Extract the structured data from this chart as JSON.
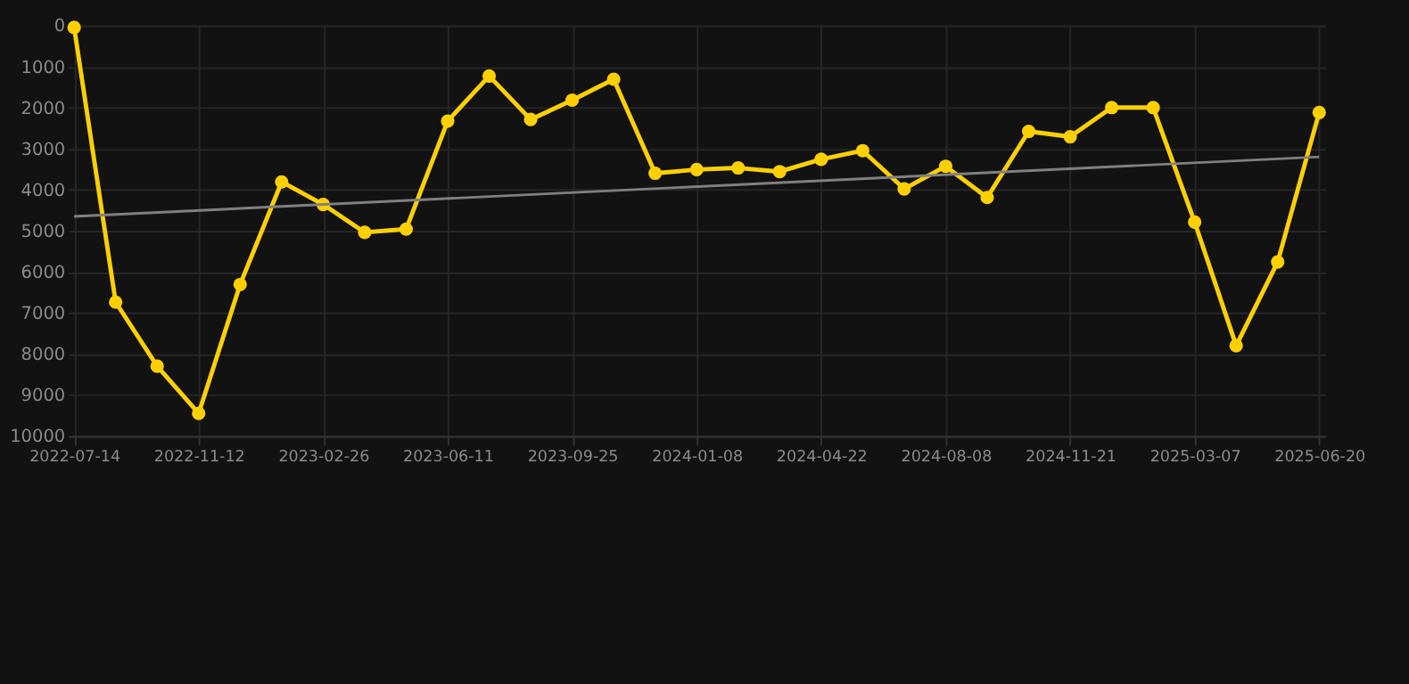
{
  "chart_data": {
    "type": "line",
    "categories": [
      "2022-07-14",
      null,
      null,
      "2022-11-12",
      null,
      null,
      "2023-02-26",
      null,
      null,
      "2023-06-11",
      null,
      null,
      "2023-09-25",
      null,
      null,
      "2024-01-08",
      null,
      null,
      "2024-04-22",
      null,
      null,
      "2024-08-08",
      null,
      null,
      "2024-11-21",
      null,
      null,
      "2025-03-07",
      null,
      null,
      "2025-06-20"
    ],
    "series": [
      {
        "color": "#ffd000",
        "marker": "circle",
        "values": [
          50,
          6740,
          8300,
          9450,
          6310,
          3810,
          4360,
          5040,
          4960,
          2330,
          1230,
          2290,
          1820,
          1310,
          3600,
          3510,
          3470,
          3560,
          3260,
          3050,
          3980,
          3430,
          4190,
          2580,
          2710,
          2000,
          2000,
          4790,
          7800,
          5760,
          2120
        ]
      },
      {
        "type": "line",
        "color": "#808080",
        "marker": "none",
        "values": [
          4650,
          null,
          null,
          null,
          null,
          null,
          null,
          null,
          null,
          null,
          null,
          null,
          null,
          null,
          null,
          null,
          null,
          null,
          null,
          null,
          null,
          null,
          null,
          null,
          null,
          null,
          null,
          null,
          null,
          null,
          3200
        ]
      }
    ],
    "ylim": [
      10000,
      0
    ],
    "yticks": [
      0,
      1000,
      2000,
      3000,
      4000,
      5000,
      6000,
      7000,
      8000,
      9000,
      10000
    ],
    "grid": true,
    "line_style": "solid"
  }
}
